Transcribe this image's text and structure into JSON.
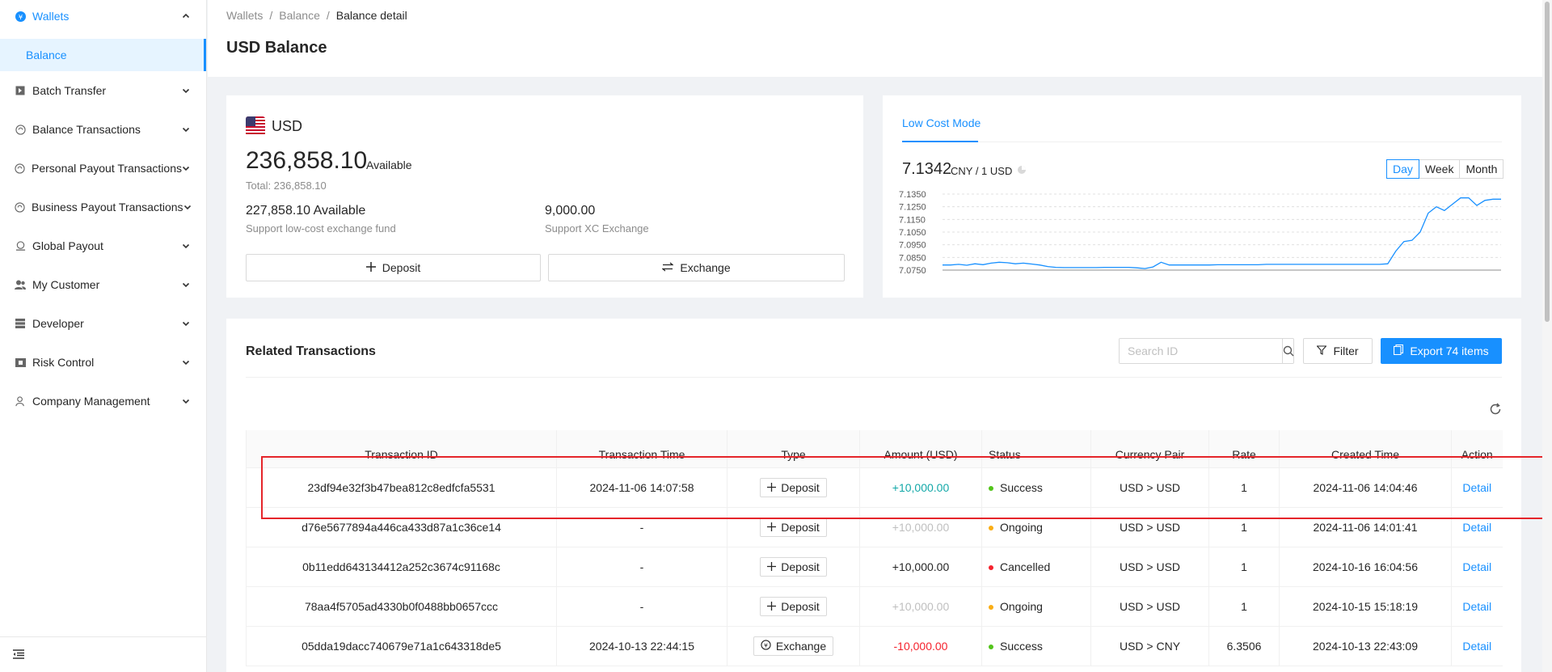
{
  "sidebar": {
    "items": [
      {
        "label": "Wallets",
        "icon": "yen-circle-icon"
      },
      {
        "label": "Balance"
      },
      {
        "label": "Batch Transfer",
        "icon": "batch-icon"
      },
      {
        "label": "Balance Transactions",
        "icon": "refresh-circle-icon"
      },
      {
        "label": "Personal Payout Transactions",
        "icon": "refresh-circle-icon"
      },
      {
        "label": "Business Payout Transactions",
        "icon": "refresh-circle-icon"
      },
      {
        "label": "Global Payout",
        "icon": "globe-hand-icon"
      },
      {
        "label": "My Customer",
        "icon": "users-icon"
      },
      {
        "label": "Developer",
        "icon": "grid-icon"
      },
      {
        "label": "Risk Control",
        "icon": "shield-card-icon"
      },
      {
        "label": "Company Management",
        "icon": "person-icon"
      }
    ]
  },
  "breadcrumb": {
    "a": "Wallets",
    "sep": "/",
    "b": "Balance",
    "c": "Balance detail"
  },
  "page": {
    "title": "USD Balance"
  },
  "balance": {
    "currency": "USD",
    "available_amount": "236,858.10",
    "available_label": "Available",
    "total": "Total: 236,858.10",
    "low_cost_amount": "227,858.10  Available",
    "low_cost_label": "Support low-cost exchange fund",
    "xc_amount": "9,000.00",
    "xc_label": "Support XC Exchange",
    "deposit_label": "Deposit",
    "exchange_label": "Exchange"
  },
  "rate": {
    "tab": "Low Cost Mode",
    "value": "7.1342",
    "unit": "CNY / 1 USD",
    "ranges": [
      "Day",
      "Week",
      "Month"
    ],
    "selected_range": "Day"
  },
  "chart_data": {
    "type": "line",
    "y_ticks": [
      "7.1350",
      "7.1250",
      "7.1150",
      "7.1050",
      "7.0950",
      "7.0850",
      "7.0750"
    ],
    "ylim": [
      7.075,
      7.135
    ],
    "values": [
      7.079,
      7.079,
      7.0795,
      7.0788,
      7.08,
      7.0793,
      7.0805,
      7.0812,
      7.0808,
      7.08,
      7.0805,
      7.0798,
      7.079,
      7.0778,
      7.0772,
      7.077,
      7.077,
      7.077,
      7.077,
      7.077,
      7.0772,
      7.0772,
      7.0772,
      7.0772,
      7.0768,
      7.0762,
      7.0775,
      7.0812,
      7.079,
      7.079,
      7.079,
      7.079,
      7.079,
      7.079,
      7.0792,
      7.0792,
      7.0792,
      7.0792,
      7.0792,
      7.0792,
      7.0795,
      7.0795,
      7.0795,
      7.0795,
      7.0795,
      7.0795,
      7.0795,
      7.0795,
      7.0795,
      7.0795,
      7.0795,
      7.0795,
      7.0795,
      7.0795,
      7.0795,
      7.08,
      7.09,
      7.0975,
      7.0985,
      7.105,
      7.12,
      7.125,
      7.122,
      7.127,
      7.132,
      7.132,
      7.126,
      7.13,
      7.131,
      7.131
    ],
    "grid": true,
    "title": "",
    "xlabel": "",
    "ylabel": ""
  },
  "transactions": {
    "title": "Related Transactions",
    "search_placeholder": "Search ID",
    "filter_label": "Filter",
    "export_label": "Export 74 items",
    "columns": [
      "Transaction ID",
      "Transaction Time",
      "Type",
      "Amount (USD)",
      "Status",
      "Currency Pair",
      "Rate",
      "Created Time",
      "Action"
    ],
    "rows": [
      {
        "id": "23df94e32f3b47bea812c8edfcfa5531",
        "time": "2024-11-06 14:07:58",
        "type": "Deposit",
        "amount": "+10,000.00",
        "amount_style": "pos",
        "status": "Success",
        "status_color": "#52c41a",
        "pair": "USD > USD",
        "rate": "1",
        "created": "2024-11-06 14:04:46",
        "action": "Detail"
      },
      {
        "id": "d76e5677894a446ca433d87a1c36ce14",
        "time": "-",
        "type": "Deposit",
        "amount": "+10,000.00",
        "amount_style": "muted",
        "status": "Ongoing",
        "status_color": "#faad14",
        "pair": "USD > USD",
        "rate": "1",
        "created": "2024-11-06 14:01:41",
        "action": "Detail"
      },
      {
        "id": "0b11edd643134412a252c3674c91168c",
        "time": "-",
        "type": "Deposit",
        "amount": "+10,000.00",
        "amount_style": "neutral",
        "status": "Cancelled",
        "status_color": "#f5222d",
        "pair": "USD > USD",
        "rate": "1",
        "created": "2024-10-16 16:04:56",
        "action": "Detail"
      },
      {
        "id": "78aa4f5705ad4330b0f0488bb0657ccc",
        "time": "-",
        "type": "Deposit",
        "amount": "+10,000.00",
        "amount_style": "muted",
        "status": "Ongoing",
        "status_color": "#faad14",
        "pair": "USD > USD",
        "rate": "1",
        "created": "2024-10-15 15:18:19",
        "action": "Detail"
      },
      {
        "id": "05dda19dacc740679e71a1c643318de5",
        "time": "2024-10-13 22:44:15",
        "type": "Exchange",
        "amount": "-10,000.00",
        "amount_style": "neg",
        "status": "Success",
        "status_color": "#52c41a",
        "pair": "USD > CNY",
        "rate": "6.3506",
        "created": "2024-10-13 22:43:09",
        "action": "Detail"
      }
    ]
  },
  "colors": {
    "accent": "#1890ff",
    "highlight": "#e5252a"
  }
}
